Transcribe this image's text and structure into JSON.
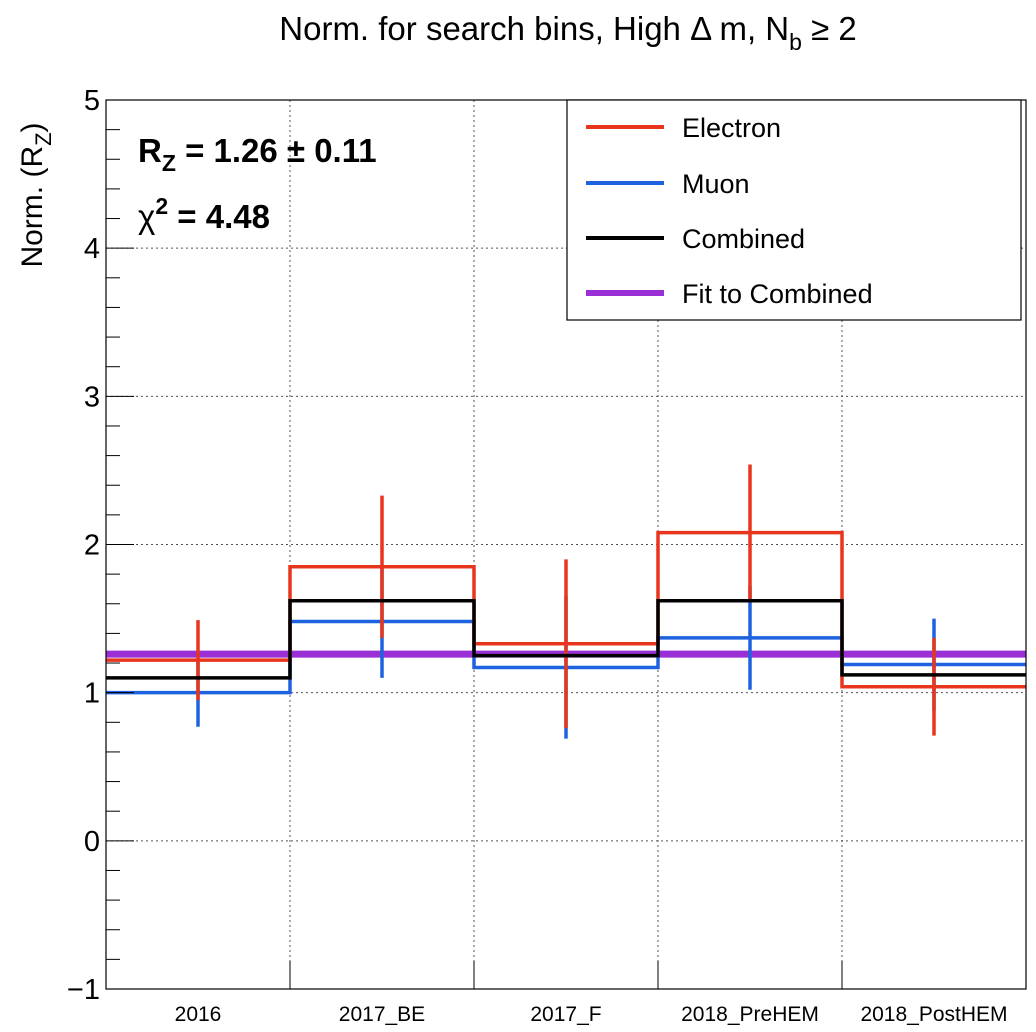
{
  "chart_data": {
    "type": "line",
    "title": "Norm. for search bins, High Δ m, N",
    "title_sub": "b",
    "title_tail": " ≥ 2",
    "ylabel": "Norm. (R",
    "ylabel_sub": "Z",
    "ylabel_tail": ")",
    "xlabel": "",
    "ylim": [
      -1,
      5
    ],
    "yticks": [
      "−1",
      "0",
      "1",
      "2",
      "3",
      "4",
      "5"
    ],
    "grid": true,
    "legend_position": "top-right",
    "categories": [
      "2016",
      "2017_BE",
      "2017_F",
      "2018_PreHEM",
      "2018_PostHEM"
    ],
    "series": [
      {
        "name": "Electron",
        "color": "#e8351d",
        "style": "step",
        "values": [
          1.22,
          1.85,
          1.33,
          2.08,
          1.04
        ],
        "errors": [
          0.27,
          0.48,
          0.57,
          0.46,
          0.33
        ]
      },
      {
        "name": "Muon",
        "color": "#1f62e0",
        "style": "step",
        "values": [
          1.0,
          1.48,
          1.17,
          1.37,
          1.19
        ],
        "errors": [
          0.23,
          0.38,
          0.48,
          0.35,
          0.31
        ]
      },
      {
        "name": "Combined",
        "color": "#000000",
        "style": "step",
        "values": [
          1.1,
          1.62,
          1.25,
          1.62,
          1.12
        ],
        "errors": [
          0,
          0,
          0,
          0,
          0
        ]
      },
      {
        "name": "Fit to Combined",
        "color": "#9b2fd6",
        "style": "constant",
        "values": [
          1.26,
          1.26,
          1.26,
          1.26,
          1.26
        ]
      }
    ],
    "annotations": {
      "rz_label": "R",
      "rz_sub": "Z",
      "rz_value": " = 1.26  ± 0.11",
      "chi2_label": "χ",
      "chi2_sup": "2",
      "chi2_value": " = 4.48"
    }
  }
}
